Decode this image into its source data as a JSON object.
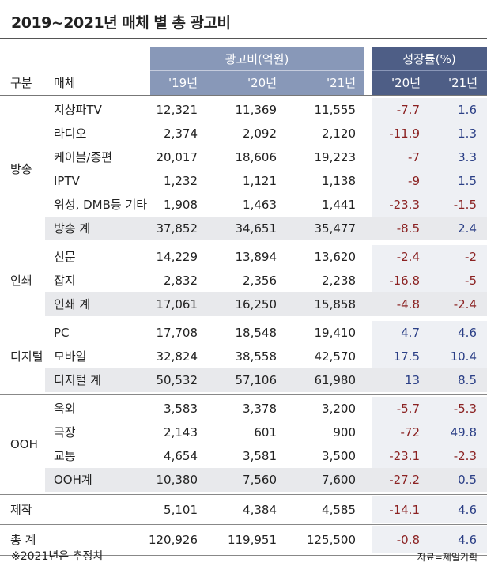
{
  "title": "2019~2021년 매체 별 총 광고비",
  "header": {
    "col_group": "구분",
    "col_media": "매체",
    "ad_group": "광고비(억원)",
    "growth_group": "성장률(%)",
    "years": [
      "'19년",
      "'20년",
      "'21년"
    ],
    "growth_years": [
      "'20년",
      "'21년"
    ]
  },
  "groups": [
    {
      "category": "방송",
      "rows": [
        {
          "media": "지상파TV",
          "v19": "12,321",
          "v20": "11,369",
          "v21": "11,555",
          "g20": "-7.7",
          "g21": "1.6"
        },
        {
          "media": "라디오",
          "v19": "2,374",
          "v20": "2,092",
          "v21": "2,120",
          "g20": "-11.9",
          "g21": "1.3"
        },
        {
          "media": "케이블/종편",
          "v19": "20,017",
          "v20": "18,606",
          "v21": "19,223",
          "g20": "-7",
          "g21": "3.3"
        },
        {
          "media": "IPTV",
          "v19": "1,232",
          "v20": "1,121",
          "v21": "1,138",
          "g20": "-9",
          "g21": "1.5"
        },
        {
          "media": "위성, DMB등 기타",
          "v19": "1,908",
          "v20": "1,463",
          "v21": "1,441",
          "g20": "-23.3",
          "g21": "-1.5"
        }
      ],
      "total": {
        "media": "방송 계",
        "v19": "37,852",
        "v20": "34,651",
        "v21": "35,477",
        "g20": "-8.5",
        "g21": "2.4"
      }
    },
    {
      "category": "인쇄",
      "rows": [
        {
          "media": "신문",
          "v19": "14,229",
          "v20": "13,894",
          "v21": "13,620",
          "g20": "-2.4",
          "g21": "-2"
        },
        {
          "media": "잡지",
          "v19": "2,832",
          "v20": "2,356",
          "v21": "2,238",
          "g20": "-16.8",
          "g21": "-5"
        }
      ],
      "total": {
        "media": "인쇄 계",
        "v19": "17,061",
        "v20": "16,250",
        "v21": "15,858",
        "g20": "-4.8",
        "g21": "-2.4"
      }
    },
    {
      "category": "디지털",
      "rows": [
        {
          "media": "PC",
          "v19": "17,708",
          "v20": "18,548",
          "v21": "19,410",
          "g20": "4.7",
          "g21": "4.6"
        },
        {
          "media": "모바일",
          "v19": "32,824",
          "v20": "38,558",
          "v21": "42,570",
          "g20": "17.5",
          "g21": "10.4"
        }
      ],
      "total": {
        "media": "디지털 계",
        "v19": "50,532",
        "v20": "57,106",
        "v21": "61,980",
        "g20": "13",
        "g21": "8.5"
      }
    },
    {
      "category": "OOH",
      "rows": [
        {
          "media": "옥외",
          "v19": "3,583",
          "v20": "3,378",
          "v21": "3,200",
          "g20": "-5.7",
          "g21": "-5.3"
        },
        {
          "media": "극장",
          "v19": "2,143",
          "v20": "601",
          "v21": "900",
          "g20": "-72",
          "g21": "49.8"
        },
        {
          "media": "교통",
          "v19": "4,654",
          "v20": "3,581",
          "v21": "3,500",
          "g20": "-23.1",
          "g21": "-2.3"
        }
      ],
      "total": {
        "media": "OOH계",
        "v19": "10,380",
        "v20": "7,560",
        "v21": "7,600",
        "g20": "-27.2",
        "g21": "0.5"
      }
    }
  ],
  "production": {
    "category": "제작",
    "v19": "5,101",
    "v20": "4,384",
    "v21": "4,585",
    "g20": "-14.1",
    "g21": "4.6"
  },
  "grand_total": {
    "category": "총 계",
    "v19": "120,926",
    "v20": "119,951",
    "v21": "125,500",
    "g20": "-0.8",
    "g21": "4.6"
  },
  "footnote": "※2021년은 추정치",
  "source": "자료=제일기획",
  "colors": {
    "header_ad": "#8898b8",
    "header_growth": "#4e5e86",
    "negative": "#8b2222",
    "positive": "#2b3f86",
    "total_row": "#e8e9ec"
  }
}
